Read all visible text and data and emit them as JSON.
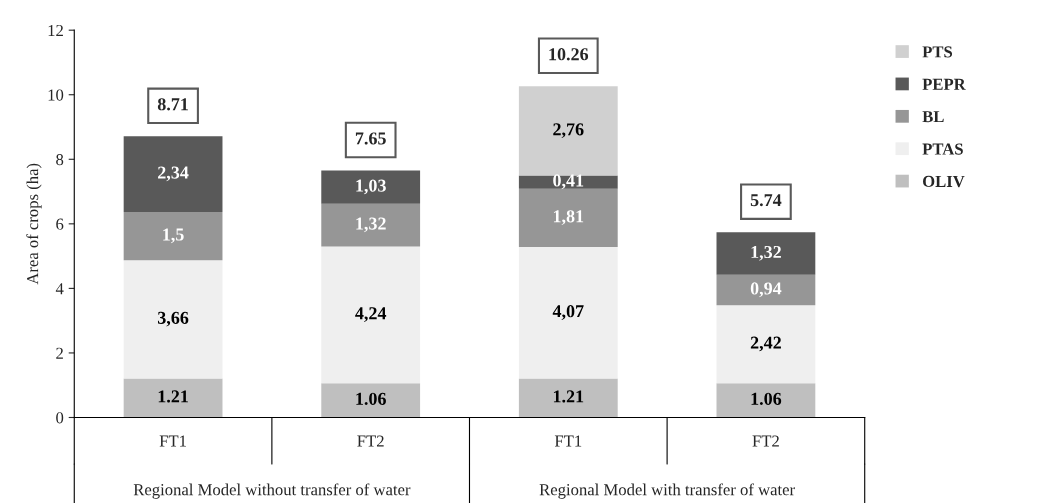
{
  "chart_data": {
    "type": "bar",
    "stacked": true,
    "ylabel": "Area of crops (ha)",
    "categories": [
      "FT1",
      "FT2",
      "FT1",
      "FT2"
    ],
    "series": [
      {
        "name": "OLIV",
        "color": "#bfbfbf",
        "values": [
          1.21,
          1.06,
          1.21,
          1.06
        ],
        "value_labels": [
          "1.21",
          "1.06",
          "1.21",
          "1.06"
        ]
      },
      {
        "name": "PTAS",
        "color": "#efefef",
        "values": [
          3.66,
          4.24,
          4.07,
          2.42
        ],
        "value_labels": [
          "3,66",
          "4,24",
          "4,07",
          "2,42"
        ]
      },
      {
        "name": "BL",
        "color": "#969696",
        "values": [
          1.5,
          1.32,
          1.81,
          0.94
        ],
        "value_labels": [
          "1,5",
          "1,32",
          "1,81",
          "0,94"
        ]
      },
      {
        "name": "PEPR",
        "color": "#595959",
        "values": [
          2.34,
          1.03,
          0.41,
          1.32
        ],
        "value_labels": [
          "2,34",
          "1,03",
          "0,41",
          "1,32"
        ]
      },
      {
        "name": "PTS",
        "color": "#d0d0d0",
        "values": [
          null,
          null,
          2.76,
          null
        ],
        "value_labels": [
          null,
          null,
          "2,76",
          null
        ]
      }
    ],
    "totals": [
      "8.71",
      "7.65",
      "10.26",
      "5.74"
    ],
    "annotations": [
      "Regional Model without transfer of water",
      "Regional Model with transfer of water"
    ],
    "ylim": [
      0,
      12
    ],
    "yticks": [
      0,
      2,
      4,
      6,
      8,
      10,
      12
    ],
    "grid": false,
    "legend": "right"
  }
}
